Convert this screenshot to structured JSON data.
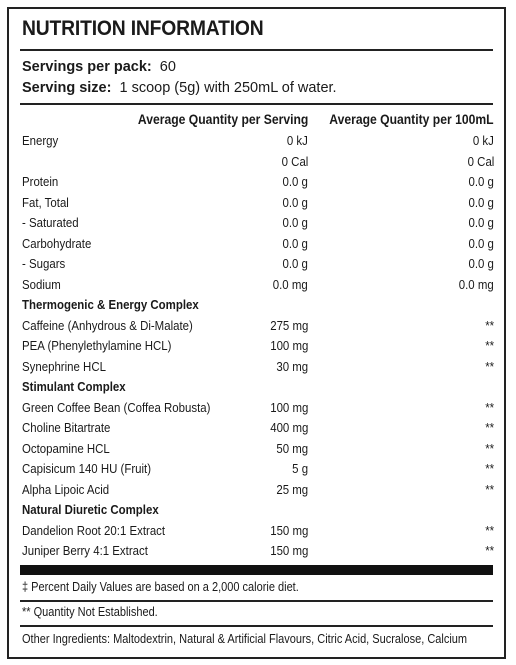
{
  "title": "NUTRITION INFORMATION",
  "servings": {
    "label": "Servings per pack:",
    "value": "60"
  },
  "serving_size": {
    "label": "Serving size:",
    "value": "1 scoop (5g) with 250mL of water."
  },
  "columns": {
    "per_serving": "Average Quantity per Serving",
    "per_100ml": "Average Quantity per 100mL"
  },
  "rows": [
    {
      "type": "item",
      "name": "Energy",
      "per_serving": "0 kJ",
      "per_100ml": "0 kJ"
    },
    {
      "type": "item",
      "name": "",
      "per_serving": "0 Cal",
      "per_100ml": "0 Cal"
    },
    {
      "type": "item",
      "name": "Protein",
      "per_serving": "0.0 g",
      "per_100ml": "0.0 g"
    },
    {
      "type": "item",
      "name": "Fat, Total",
      "per_serving": "0.0 g",
      "per_100ml": "0.0 g"
    },
    {
      "type": "item",
      "name": " - Saturated",
      "per_serving": "0.0 g",
      "per_100ml": "0.0 g"
    },
    {
      "type": "item",
      "name": "Carbohydrate",
      "per_serving": "0.0 g",
      "per_100ml": "0.0 g"
    },
    {
      "type": "item",
      "name": " - Sugars",
      "per_serving": "0.0 g",
      "per_100ml": "0.0 g"
    },
    {
      "type": "item",
      "name": "Sodium",
      "per_serving": "0.0 mg",
      "per_100ml": "0.0 mg"
    },
    {
      "type": "section",
      "name": "Thermogenic & Energy Complex",
      "per_serving": "",
      "per_100ml": ""
    },
    {
      "type": "item",
      "name": "Caffeine (Anhydrous & Di-Malate)",
      "per_serving": "275 mg",
      "per_100ml": "**"
    },
    {
      "type": "item",
      "name": "PEA (Phenylethylamine HCL)",
      "per_serving": "100 mg",
      "per_100ml": "**"
    },
    {
      "type": "item",
      "name": "Synephrine HCL",
      "per_serving": "30 mg",
      "per_100ml": "**"
    },
    {
      "type": "section",
      "name": "Stimulant Complex",
      "per_serving": "",
      "per_100ml": ""
    },
    {
      "type": "item",
      "name": "Green Coffee Bean (Coffea Robusta)",
      "per_serving": "100 mg",
      "per_100ml": "**"
    },
    {
      "type": "item",
      "name": "Choline Bitartrate",
      "per_serving": "400 mg",
      "per_100ml": "**"
    },
    {
      "type": "item",
      "name": "Octopamine HCL",
      "per_serving": "50 mg",
      "per_100ml": "**"
    },
    {
      "type": "item",
      "name": "Capisicum 140 HU  (Fruit)",
      "per_serving": "5 g",
      "per_100ml": "**"
    },
    {
      "type": "item",
      "name": "Alpha Lipoic Acid",
      "per_serving": "25 mg",
      "per_100ml": "**"
    },
    {
      "type": "section",
      "name": "Natural Diuretic Complex",
      "per_serving": "",
      "per_100ml": ""
    },
    {
      "type": "item",
      "name": "Dandelion Root 20:1 Extract",
      "per_serving": "150 mg",
      "per_100ml": "**"
    },
    {
      "type": "item",
      "name": "Juniper Berry 4:1 Extract",
      "per_serving": "150 mg",
      "per_100ml": "**"
    }
  ],
  "footnotes": {
    "daily_values": "‡ Percent Daily Values are based on a 2,000 calorie diet.",
    "not_established": "** Quantity Not Established.",
    "ingredients": "Other Ingredients: Maltodextrin, Natural & Artificial Flavours, Citric Acid, Sucralose, Calcium"
  }
}
